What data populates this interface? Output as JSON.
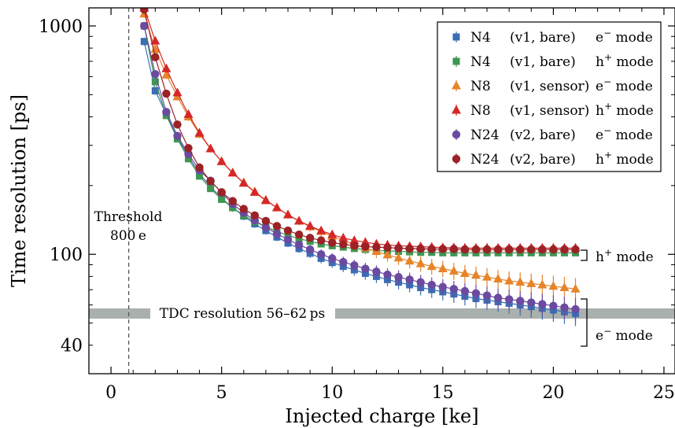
{
  "chart_data": {
    "type": "scatter",
    "xlabel": "Injected charge [ke]",
    "ylabel": "Time resolution [ps]",
    "xlim": [
      -1,
      25.5
    ],
    "ylim": [
      30,
      1200
    ],
    "yscale": "log",
    "x_ticks": [
      0,
      5,
      10,
      15,
      20,
      25
    ],
    "y_ticks": [
      40,
      100,
      1000
    ],
    "grid": false,
    "legend_position": "top-right",
    "x": [
      1.5,
      2.0,
      2.5,
      3.0,
      3.5,
      4.0,
      4.5,
      5.0,
      5.5,
      6.0,
      6.5,
      7.0,
      7.5,
      8.0,
      8.5,
      9.0,
      9.5,
      10.0,
      10.5,
      11.0,
      11.5,
      12.0,
      12.5,
      13.0,
      13.5,
      14.0,
      14.5,
      15.0,
      15.5,
      16.0,
      16.5,
      17.0,
      17.5,
      18.0,
      18.5,
      19.0,
      19.5,
      20.0,
      20.5,
      21.0
    ],
    "series": [
      {
        "name": "N4 (v1, bare) e− mode",
        "color": "#3b6db3",
        "marker": "square",
        "values": [
          855,
          520,
          410,
          325,
          268,
          225,
          198,
          176,
          160,
          147,
          136,
          127,
          119,
          112,
          106,
          101,
          96,
          92,
          88.5,
          85.5,
          82.5,
          80,
          77.5,
          75.5,
          73.5,
          71.5,
          70,
          68.5,
          67,
          65.5,
          64,
          63,
          62,
          61,
          60,
          59,
          58,
          57,
          56,
          55
        ]
      },
      {
        "name": "N4 (v1, bare) h+ mode",
        "color": "#3e9651",
        "marker": "square",
        "values": [
          1000,
          570,
          405,
          320,
          262,
          220,
          194,
          174,
          160,
          148,
          139,
          132,
          126,
          121,
          117,
          114,
          111,
          109,
          107.5,
          106,
          105,
          104,
          103.5,
          103,
          102.5,
          102,
          102,
          101.5,
          101.5,
          101.5,
          101.5,
          101.5,
          101.5,
          101.5,
          101.5,
          101.5,
          101.5,
          101.5,
          101.5,
          101.5
        ]
      },
      {
        "name": "N8 (v1, sensor) e− mode",
        "color": "#e6842a",
        "marker": "triangle",
        "values": [
          1130,
          790,
          610,
          490,
          400,
          336,
          290,
          255,
          228,
          206,
          188,
          173,
          160,
          149,
          140,
          132,
          126,
          120,
          115,
          110.5,
          106.5,
          103,
          99.5,
          96.5,
          93.5,
          91,
          88.5,
          86.5,
          84.5,
          82.5,
          81,
          79.5,
          78,
          76.5,
          75.5,
          74.5,
          73.5,
          72.5,
          71.5,
          70.5
        ]
      },
      {
        "name": "N8 (v1, sensor) h+ mode",
        "color": "#d62728",
        "marker": "triangle",
        "values": [
          1200,
          860,
          650,
          510,
          410,
          340,
          290,
          255,
          227,
          205,
          187,
          172,
          160,
          149,
          140,
          133,
          127,
          122,
          118,
          115,
          113,
          111,
          110,
          109,
          108.5,
          108,
          107.5,
          107,
          107,
          106.5,
          106.5,
          106.5,
          106.5,
          106.5,
          106.5,
          106.5,
          106.5,
          106.5,
          106.5,
          106.5
        ]
      },
      {
        "name": "N24 (v2, bare) e− mode",
        "color": "#6b4aa0",
        "marker": "circle",
        "values": [
          1000,
          615,
          420,
          330,
          275,
          233,
          210,
          186,
          166,
          152,
          141,
          131,
          123,
          116,
          110,
          105,
          100,
          96,
          92.5,
          89.5,
          86.5,
          84,
          81.5,
          79.5,
          77.5,
          75.5,
          73.5,
          72,
          70.5,
          69,
          67.5,
          66,
          64.5,
          63.5,
          62.5,
          61.5,
          60.5,
          59.5,
          58.5,
          57.5
        ]
      },
      {
        "name": "N24 (v2, bare) h+ mode",
        "color": "#9b2226",
        "marker": "circle",
        "values": [
          1180,
          730,
          505,
          370,
          292,
          240,
          209,
          187,
          171,
          158,
          148,
          140,
          133,
          127,
          122,
          118,
          115,
          112.5,
          110.5,
          109,
          108,
          107.5,
          107,
          106.5,
          106,
          106,
          105.5,
          105.5,
          105.5,
          105,
          105,
          105,
          105,
          105,
          105,
          105,
          105,
          105,
          105,
          105
        ]
      }
    ],
    "annotations": {
      "threshold_label_line1": "Threshold",
      "threshold_label_line2": "800 e",
      "threshold_x": 0.8,
      "tdc_label": "TDC resolution  56–62 ps",
      "tdc_range": [
        56,
        62
      ],
      "hplus_bracket_label": "h",
      "hplus_bracket_sup": "+",
      "hplus_bracket_suffix": " mode",
      "eminus_bracket_label": "e",
      "eminus_bracket_sup": "−",
      "eminus_bracket_suffix": " mode"
    },
    "legend": [
      {
        "det": "N4",
        "ver": "(v1, bare)",
        "mode": "e",
        "sup": "−",
        "suffix": " mode"
      },
      {
        "det": "N4",
        "ver": "(v1, bare)",
        "mode": "h",
        "sup": "+",
        "suffix": " mode"
      },
      {
        "det": "N8",
        "ver": "(v1, sensor)",
        "mode": "e",
        "sup": "−",
        "suffix": " mode"
      },
      {
        "det": "N8",
        "ver": "(v1, sensor)",
        "mode": "h",
        "sup": "+",
        "suffix": " mode"
      },
      {
        "det": "N24",
        "ver": "(v2, bare)",
        "mode": "e",
        "sup": "−",
        "suffix": " mode"
      },
      {
        "det": "N24",
        "ver": "(v2, bare)",
        "mode": "h",
        "sup": "+",
        "suffix": " mode"
      }
    ]
  }
}
